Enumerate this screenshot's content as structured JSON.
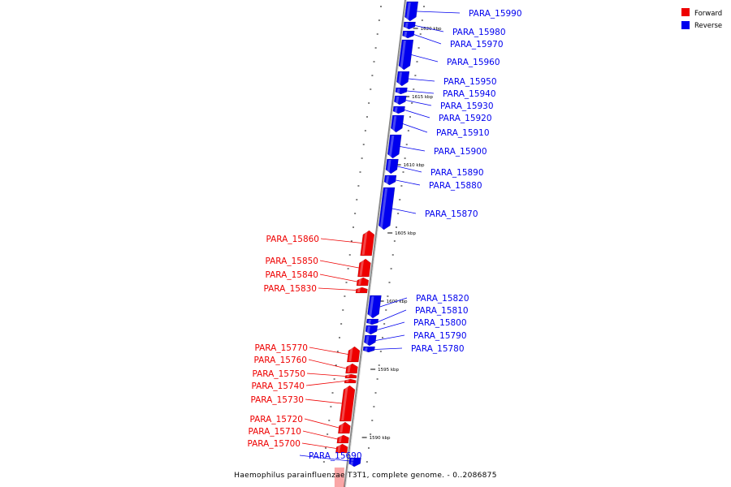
{
  "caption": "Haemophilus parainfluenzae T3T1, complete genome. - 0..2086875",
  "legend": [
    {
      "label": "Forward",
      "color": "#ee0000"
    },
    {
      "label": "Reverse",
      "color": "#0000ee"
    }
  ],
  "colors": {
    "forward": "#ee0000",
    "reverse": "#0000ee",
    "axis": "#888888"
  },
  "ticks": [
    "1620 kbp",
    "1615 kbp",
    "1610 kbp",
    "1605 kbp",
    "1600 kbp",
    "1595 kbp",
    "1590 kbp"
  ],
  "genes": [
    {
      "id": "PARA_15990",
      "strand": "reverse"
    },
    {
      "id": "PARA_15980",
      "strand": "reverse"
    },
    {
      "id": "PARA_15970",
      "strand": "reverse"
    },
    {
      "id": "PARA_15960",
      "strand": "reverse"
    },
    {
      "id": "PARA_15950",
      "strand": "reverse"
    },
    {
      "id": "PARA_15940",
      "strand": "reverse"
    },
    {
      "id": "PARA_15930",
      "strand": "reverse"
    },
    {
      "id": "PARA_15920",
      "strand": "reverse"
    },
    {
      "id": "PARA_15910",
      "strand": "reverse"
    },
    {
      "id": "PARA_15900",
      "strand": "reverse"
    },
    {
      "id": "PARA_15890",
      "strand": "reverse"
    },
    {
      "id": "PARA_15880",
      "strand": "reverse"
    },
    {
      "id": "PARA_15870",
      "strand": "reverse"
    },
    {
      "id": "PARA_15860",
      "strand": "forward"
    },
    {
      "id": "PARA_15850",
      "strand": "forward"
    },
    {
      "id": "PARA_15840",
      "strand": "forward"
    },
    {
      "id": "PARA_15830",
      "strand": "forward"
    },
    {
      "id": "PARA_15820",
      "strand": "reverse"
    },
    {
      "id": "PARA_15810",
      "strand": "reverse"
    },
    {
      "id": "PARA_15800",
      "strand": "reverse"
    },
    {
      "id": "PARA_15790",
      "strand": "reverse"
    },
    {
      "id": "PARA_15780",
      "strand": "reverse"
    },
    {
      "id": "PARA_15770",
      "strand": "forward"
    },
    {
      "id": "PARA_15760",
      "strand": "forward"
    },
    {
      "id": "PARA_15750",
      "strand": "forward"
    },
    {
      "id": "PARA_15740",
      "strand": "forward"
    },
    {
      "id": "PARA_15730",
      "strand": "forward"
    },
    {
      "id": "PARA_15720",
      "strand": "forward"
    },
    {
      "id": "PARA_15710",
      "strand": "forward"
    },
    {
      "id": "PARA_15700",
      "strand": "forward"
    },
    {
      "id": "PARA_15690",
      "strand": "reverse"
    }
  ]
}
